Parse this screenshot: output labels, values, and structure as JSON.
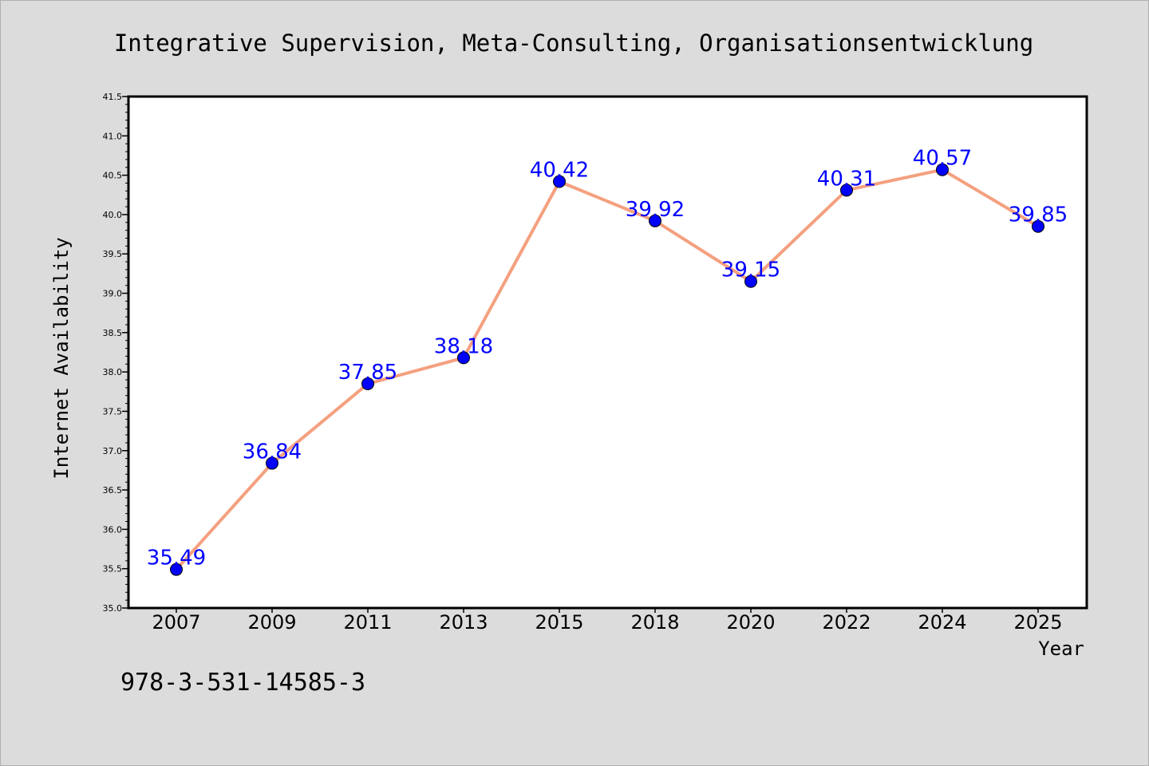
{
  "chart_data": {
    "type": "line",
    "title": "Integrative Supervision, Meta-Consulting, Organisationsentwicklung",
    "xlabel": "Year",
    "ylabel": "Internet Availability",
    "categories": [
      "2007",
      "2009",
      "2011",
      "2013",
      "2015",
      "2018",
      "2020",
      "2022",
      "2024",
      "2025"
    ],
    "values": [
      35.49,
      36.84,
      37.85,
      38.18,
      40.42,
      39.92,
      39.15,
      40.31,
      40.57,
      39.85
    ],
    "data_labels": [
      "35.49",
      "36.84",
      "37.85",
      "38.18",
      "40.42",
      "39.92",
      "39.15",
      "40.31",
      "40.57",
      "39.85"
    ],
    "ylim": [
      35.0,
      41.5
    ],
    "yticks": [
      "35.0",
      "35.5",
      "36.0",
      "36.5",
      "37.0",
      "37.5",
      "38.0",
      "38.5",
      "39.0",
      "39.5",
      "40.0",
      "40.5",
      "41.0",
      "41.5"
    ],
    "grid": false,
    "line_color": "#f4a07f",
    "marker_color": "#0000ff",
    "label_color": "#0000ff"
  },
  "footnote": "978-3-531-14585-3"
}
